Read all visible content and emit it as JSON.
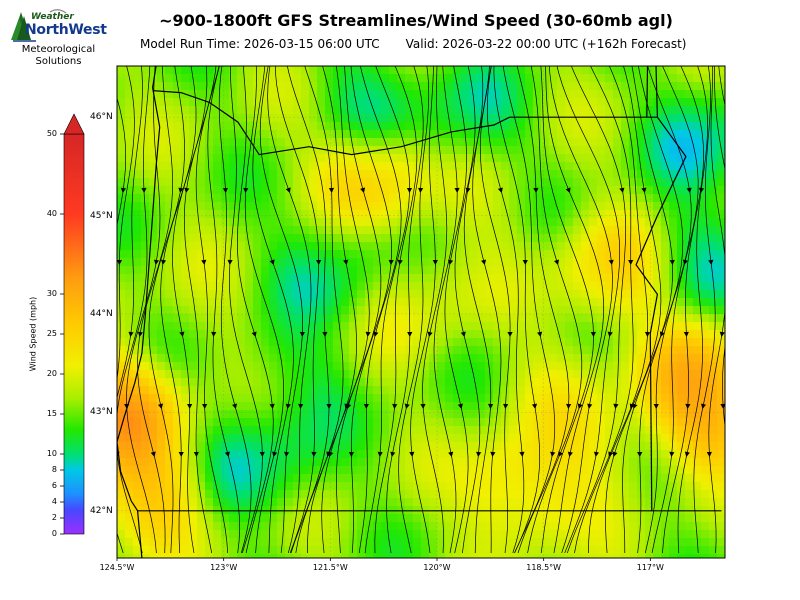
{
  "logo": {
    "weather": "Weather",
    "northwest": "NorthWest",
    "tagline_line1": "Meteorological",
    "tagline_line2": "Solutions"
  },
  "header": {
    "title": "~900-1800ft GFS Streamlines/Wind Speed (30-60mb agl)",
    "model_run": "Model Run Time: 2026-03-15 06:00 UTC",
    "valid": "Valid: 2026-03-22 00:00 UTC  (+162h Forecast)"
  },
  "map": {
    "extent": {
      "lon_min": -124.5,
      "lon_max": -115.95,
      "lat_min": 41.52,
      "lat_max": 46.52
    },
    "lat_ticks": [
      {
        "value": 46,
        "label": "46°N"
      },
      {
        "value": 45,
        "label": "45°N"
      },
      {
        "value": 44,
        "label": "44°N"
      },
      {
        "value": 43,
        "label": "43°N"
      },
      {
        "value": 42,
        "label": "42°N"
      }
    ],
    "lon_ticks": [
      {
        "value": -124.5,
        "label": "124.5°W"
      },
      {
        "value": -123,
        "label": "123°W"
      },
      {
        "value": -121.5,
        "label": "121.5°W"
      },
      {
        "value": -120,
        "label": "120°W"
      },
      {
        "value": -118.5,
        "label": "118.5°W"
      },
      {
        "value": -117,
        "label": "117°W"
      }
    ],
    "speed_centers_mph": [
      {
        "lon": -122.4,
        "lat": 42.5,
        "speed": 7
      },
      {
        "lon": -121.5,
        "lat": 44.5,
        "speed": 8
      },
      {
        "lon": -122.1,
        "lat": 43.3,
        "speed": 10
      },
      {
        "lon": -120.9,
        "lat": 46.2,
        "speed": 9
      },
      {
        "lon": -119.6,
        "lat": 45.9,
        "speed": 7
      },
      {
        "lon": -116.2,
        "lat": 45.8,
        "speed": 6
      },
      {
        "lon": -116.3,
        "lat": 44.6,
        "speed": 9
      },
      {
        "lon": -124.4,
        "lat": 43.0,
        "speed": 38
      },
      {
        "lon": -124.1,
        "lat": 42.2,
        "speed": 32
      },
      {
        "lon": -120.9,
        "lat": 45.4,
        "speed": 30
      },
      {
        "lon": -116.2,
        "lat": 43.0,
        "speed": 36
      },
      {
        "lon": -116.5,
        "lat": 43.4,
        "speed": 30
      },
      {
        "lon": -117.5,
        "lat": 44.4,
        "speed": 28
      },
      {
        "lon": -118.8,
        "lat": 42.2,
        "speed": 30
      },
      {
        "lon": -120.2,
        "lat": 44.2,
        "speed": 22
      },
      {
        "lon": -118.2,
        "lat": 43.2,
        "speed": 22
      },
      {
        "lon": -117.8,
        "lat": 42.6,
        "speed": 24
      },
      {
        "lon": -123.5,
        "lat": 44.0,
        "speed": 18
      },
      {
        "lon": -119.3,
        "lat": 45.2,
        "speed": 20
      }
    ],
    "background_speed_mph": 16,
    "boundaries": [
      {
        "name": "oregon-california-border",
        "points": [
          [
            -124.21,
            42.0
          ],
          [
            -116.0,
            42.0
          ]
        ]
      },
      {
        "name": "oregon-idaho-border",
        "points": [
          [
            -116.98,
            42.0
          ],
          [
            -117.0,
            43.8
          ],
          [
            -116.9,
            44.2
          ],
          [
            -117.2,
            44.5
          ],
          [
            -116.9,
            45.0
          ],
          [
            -116.5,
            45.6
          ],
          [
            -116.9,
            46.0
          ],
          [
            -116.92,
            46.52
          ]
        ]
      },
      {
        "name": "washington-idaho-border",
        "points": [
          [
            -117.04,
            46.52
          ],
          [
            -117.05,
            46.0
          ]
        ]
      },
      {
        "name": "columbia-river-border",
        "points": [
          [
            -124.0,
            46.27
          ],
          [
            -123.6,
            46.25
          ],
          [
            -123.2,
            46.15
          ],
          [
            -122.8,
            45.95
          ],
          [
            -122.5,
            45.62
          ],
          [
            -121.8,
            45.7
          ],
          [
            -121.2,
            45.62
          ],
          [
            -120.5,
            45.7
          ],
          [
            -119.8,
            45.85
          ],
          [
            -119.2,
            45.92
          ],
          [
            -118.98,
            46.0
          ],
          [
            -116.9,
            46.0
          ]
        ]
      },
      {
        "name": "coastline",
        "points": [
          [
            -123.95,
            46.52
          ],
          [
            -124.0,
            46.3
          ],
          [
            -123.9,
            45.9
          ],
          [
            -123.95,
            45.5
          ],
          [
            -124.0,
            45.0
          ],
          [
            -124.05,
            44.5
          ],
          [
            -124.1,
            44.0
          ],
          [
            -124.15,
            43.6
          ],
          [
            -124.25,
            43.3
          ],
          [
            -124.4,
            42.95
          ],
          [
            -124.5,
            42.7
          ],
          [
            -124.45,
            42.4
          ],
          [
            -124.3,
            42.1
          ],
          [
            -124.21,
            42.0
          ],
          [
            -124.15,
            41.52
          ]
        ]
      }
    ]
  },
  "colorbar": {
    "label": "Wind Speed (mph)",
    "ticks": [
      0,
      2,
      4,
      6,
      8,
      10,
      15,
      20,
      25,
      30,
      40,
      50
    ],
    "colors": [
      {
        "speed": 0,
        "color": "#9b30ff"
      },
      {
        "speed": 3,
        "color": "#4848ff"
      },
      {
        "speed": 5,
        "color": "#1e90ff"
      },
      {
        "speed": 8,
        "color": "#00c8e6"
      },
      {
        "speed": 10,
        "color": "#00e070"
      },
      {
        "speed": 13,
        "color": "#22e800"
      },
      {
        "speed": 17,
        "color": "#aaee00"
      },
      {
        "speed": 21,
        "color": "#f0f000"
      },
      {
        "speed": 26,
        "color": "#ffcc00"
      },
      {
        "speed": 32,
        "color": "#ff9c10"
      },
      {
        "speed": 40,
        "color": "#ff3a22"
      },
      {
        "speed": 50,
        "color": "#d62626"
      }
    ]
  }
}
